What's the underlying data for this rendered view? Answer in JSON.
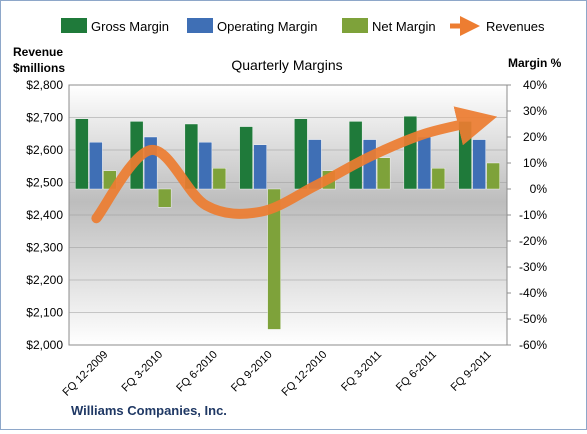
{
  "chart_data": {
    "type": "bar",
    "title": "Quarterly Margins",
    "company": "Williams Companies, Inc.",
    "left_axis_label_line1": "Revenue",
    "left_axis_label_line2": "$millions",
    "right_axis_label": "Margin %",
    "categories": [
      "FQ 12-2009",
      "FQ 3-2010",
      "FQ 6-2010",
      "FQ 9-2010",
      "FQ 12-2010",
      "FQ 3-2011",
      "FQ 6-2011",
      "FQ 9-2011"
    ],
    "left_ylim": [
      2000,
      2800
    ],
    "left_ticks": [
      2000,
      2100,
      2200,
      2300,
      2400,
      2500,
      2600,
      2700,
      2800
    ],
    "left_tick_labels": [
      "$2,000",
      "$2,100",
      "$2,200",
      "$2,300",
      "$2,400",
      "$2,500",
      "$2,600",
      "$2,700",
      "$2,800"
    ],
    "right_ylim": [
      -60,
      40
    ],
    "right_ticks": [
      -60,
      -50,
      -40,
      -30,
      -20,
      -10,
      0,
      10,
      20,
      30,
      40
    ],
    "right_tick_labels": [
      "-60%",
      "-50%",
      "-40%",
      "-30%",
      "-20%",
      "-10%",
      "0%",
      "10%",
      "20%",
      "30%",
      "40%"
    ],
    "series": [
      {
        "name": "Gross Margin",
        "axis": "right",
        "kind": "bar",
        "color": "#1f7a3a",
        "values": [
          27,
          26,
          25,
          24,
          27,
          26,
          28,
          26
        ]
      },
      {
        "name": "Operating Margin",
        "axis": "right",
        "kind": "bar",
        "color": "#3f6fb5",
        "values": [
          18,
          20,
          18,
          17,
          19,
          19,
          20,
          19
        ]
      },
      {
        "name": "Net Margin",
        "axis": "right",
        "kind": "bar",
        "color": "#7ea23a",
        "values": [
          7,
          -7,
          8,
          -54,
          7,
          12,
          8,
          10
        ]
      },
      {
        "name": "Revenues",
        "axis": "left",
        "kind": "line",
        "color": "#ed7d31",
        "values": [
          2390,
          2600,
          2430,
          2410,
          2490,
          2580,
          2650,
          2690
        ]
      }
    ],
    "grid": true,
    "legend": "top"
  }
}
